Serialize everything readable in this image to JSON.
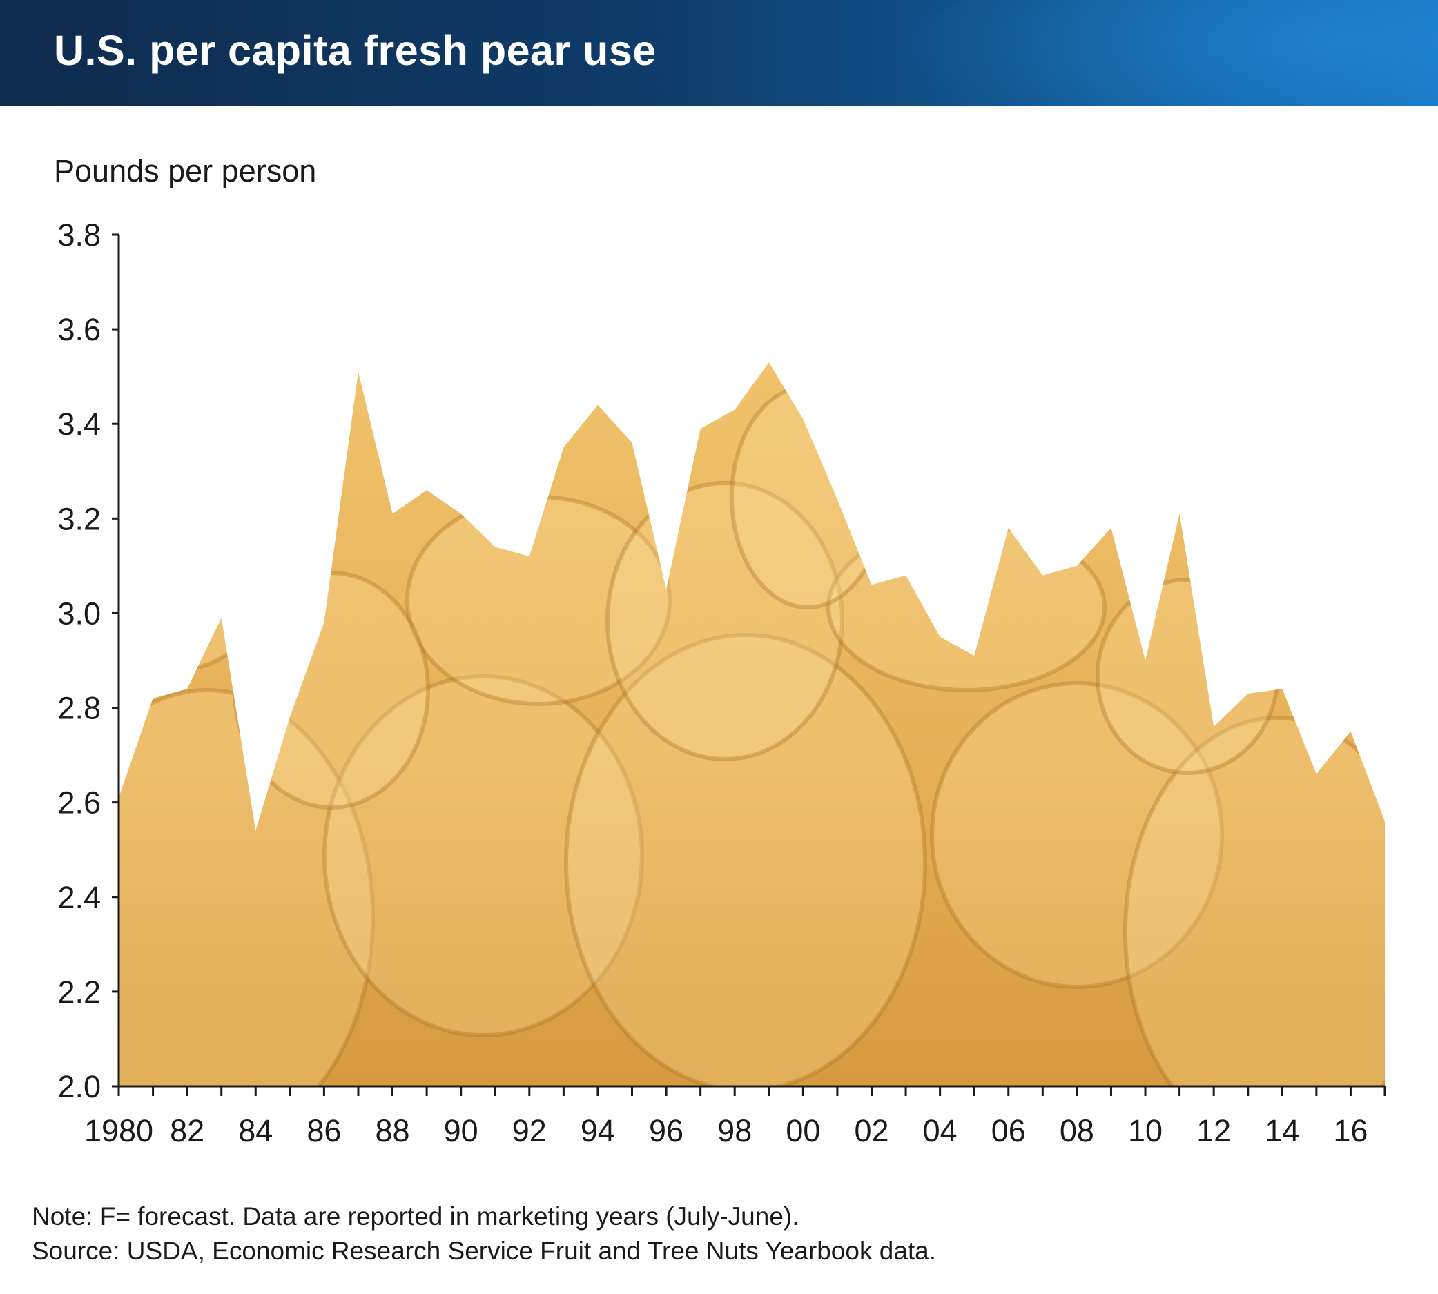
{
  "header": {
    "title": "U.S. per capita fresh pear use"
  },
  "colors": {
    "header_dark": "#0f2b4d",
    "header_light": "#1677c4",
    "area_fill": "#e8b35a",
    "axis": "#1a1a1a"
  },
  "chart_data": {
    "type": "area",
    "title": "U.S. per capita fresh pear use",
    "ylabel": "Pounds per person",
    "xlabel": "",
    "ylim": [
      2.0,
      3.8
    ],
    "yticks": [
      "2.0",
      "2.2",
      "2.4",
      "2.6",
      "2.8",
      "3.0",
      "3.2",
      "3.4",
      "3.6",
      "3.8"
    ],
    "xlim": [
      1980,
      2017
    ],
    "xtick_labels": [
      {
        "year": 1980,
        "label": "1980"
      },
      {
        "year": 1982,
        "label": "82"
      },
      {
        "year": 1984,
        "label": "84"
      },
      {
        "year": 1986,
        "label": "86"
      },
      {
        "year": 1988,
        "label": "88"
      },
      {
        "year": 1990,
        "label": "90"
      },
      {
        "year": 1992,
        "label": "92"
      },
      {
        "year": 1994,
        "label": "94"
      },
      {
        "year": 1996,
        "label": "96"
      },
      {
        "year": 1998,
        "label": "98"
      },
      {
        "year": 2000,
        "label": "00"
      },
      {
        "year": 2002,
        "label": "02"
      },
      {
        "year": 2004,
        "label": "04"
      },
      {
        "year": 2006,
        "label": "06"
      },
      {
        "year": 2008,
        "label": "08"
      },
      {
        "year": 2010,
        "label": "10"
      },
      {
        "year": 2012,
        "label": "12"
      },
      {
        "year": 2014,
        "label": "14"
      },
      {
        "year": 2016,
        "label": "16"
      }
    ],
    "x": [
      1980,
      1981,
      1982,
      1983,
      1984,
      1985,
      1986,
      1987,
      1988,
      1989,
      1990,
      1991,
      1992,
      1993,
      1994,
      1995,
      1996,
      1997,
      1998,
      1999,
      2000,
      2001,
      2002,
      2003,
      2004,
      2005,
      2006,
      2007,
      2008,
      2009,
      2010,
      2011,
      2012,
      2013,
      2014,
      2015,
      2016,
      2017
    ],
    "values": [
      2.61,
      2.82,
      2.84,
      2.99,
      2.54,
      2.78,
      2.98,
      3.51,
      3.21,
      3.26,
      3.21,
      3.14,
      3.12,
      3.35,
      3.44,
      3.36,
      3.05,
      3.39,
      3.43,
      3.53,
      3.41,
      3.24,
      3.06,
      3.08,
      2.95,
      2.91,
      3.18,
      3.08,
      3.1,
      3.18,
      2.9,
      3.21,
      2.76,
      2.83,
      2.84,
      2.66,
      2.75,
      2.56
    ],
    "grid": false,
    "legend": "none"
  },
  "footer": {
    "note": "Note: F= forecast. Data are reported in marketing years (July-June).",
    "source": "Source: USDA, Economic Research Service Fruit and Tree Nuts Yearbook data."
  }
}
